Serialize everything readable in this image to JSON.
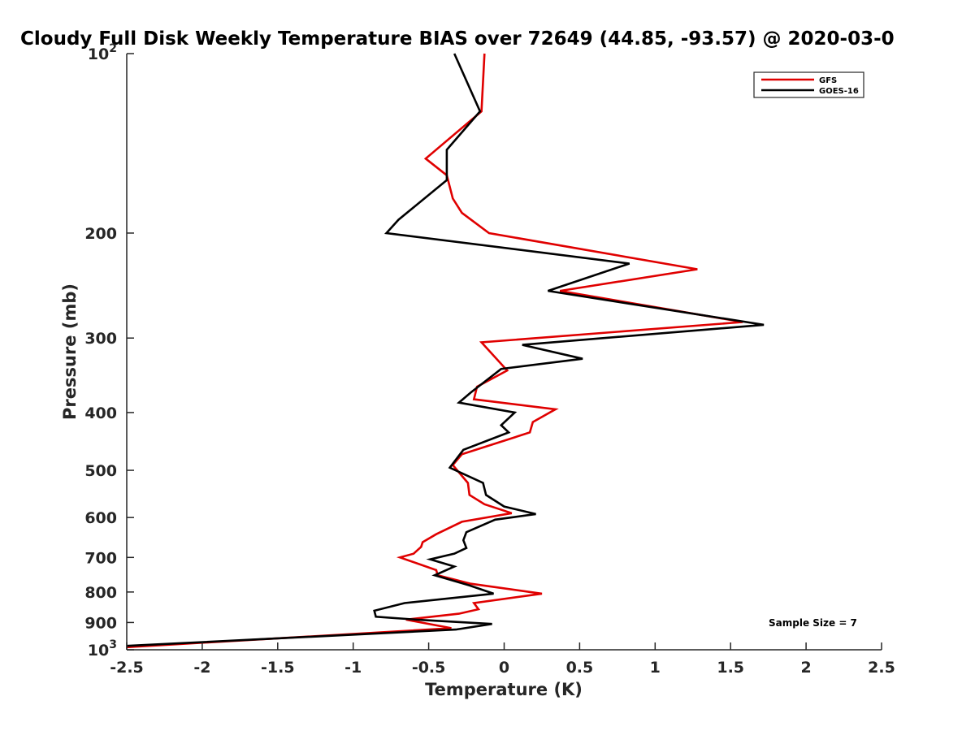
{
  "chart_data": {
    "type": "line",
    "title": "Cloudy Full Disk Weekly Temperature BIAS over 72649 (44.85, -93.57) @ 2020-03-0",
    "xlabel": "Temperature (K)",
    "ylabel": "Pressure (mb)",
    "xlim": [
      -2.5,
      2.5
    ],
    "ylim": [
      1000,
      100
    ],
    "y_scale": "log",
    "y_reversed": true,
    "x_ticks": [
      "-2.5",
      "-2",
      "-1.5",
      "-1",
      "-0.5",
      "0",
      "0.5",
      "1",
      "1.5",
      "2",
      "2.5"
    ],
    "x_tick_values": [
      -2.5,
      -2,
      -1.5,
      -1,
      -0.5,
      0,
      0.5,
      1,
      1.5,
      2,
      2.5
    ],
    "y_ticks": [
      {
        "value": 100,
        "label": "10",
        "sup": "2"
      },
      {
        "value": 200,
        "label": "200",
        "sup": ""
      },
      {
        "value": 300,
        "label": "300",
        "sup": ""
      },
      {
        "value": 400,
        "label": "400",
        "sup": ""
      },
      {
        "value": 500,
        "label": "500",
        "sup": ""
      },
      {
        "value": 600,
        "label": "600",
        "sup": ""
      },
      {
        "value": 700,
        "label": "700",
        "sup": ""
      },
      {
        "value": 800,
        "label": "800",
        "sup": ""
      },
      {
        "value": 900,
        "label": "900",
        "sup": ""
      },
      {
        "value": 1000,
        "label": "10",
        "sup": "3"
      }
    ],
    "grid": false,
    "legend_position": "top-right",
    "annotation": "Sample Size = 7",
    "series": [
      {
        "name": "GFS",
        "color": "#e00000",
        "points": [
          [
            -0.13,
            100
          ],
          [
            -0.15,
            125
          ],
          [
            -0.52,
            150
          ],
          [
            -0.38,
            160
          ],
          [
            -0.34,
            175
          ],
          [
            -0.28,
            185
          ],
          [
            -0.1,
            200
          ],
          [
            1.28,
            230
          ],
          [
            0.37,
            250
          ],
          [
            1.58,
            282
          ],
          [
            -0.15,
            305
          ],
          [
            0.02,
            340
          ],
          [
            -0.18,
            362
          ],
          [
            -0.2,
            380
          ],
          [
            0.34,
            395
          ],
          [
            0.19,
            415
          ],
          [
            0.17,
            432
          ],
          [
            -0.28,
            470
          ],
          [
            -0.34,
            490
          ],
          [
            -0.24,
            525
          ],
          [
            -0.23,
            550
          ],
          [
            -0.13,
            570
          ],
          [
            0.05,
            590
          ],
          [
            -0.28,
            610
          ],
          [
            -0.45,
            640
          ],
          [
            -0.54,
            660
          ],
          [
            -0.55,
            672
          ],
          [
            -0.6,
            690
          ],
          [
            -0.69,
            700
          ],
          [
            -0.45,
            735
          ],
          [
            -0.44,
            750
          ],
          [
            -0.22,
            775
          ],
          [
            0.25,
            805
          ],
          [
            -0.2,
            835
          ],
          [
            -0.17,
            855
          ],
          [
            -0.3,
            870
          ],
          [
            -0.65,
            890
          ],
          [
            -0.35,
            920
          ],
          [
            -2.5,
            990
          ]
        ]
      },
      {
        "name": "GOES-16",
        "color": "#000000",
        "points": [
          [
            -0.33,
            100
          ],
          [
            -0.16,
            125
          ],
          [
            -0.38,
            145
          ],
          [
            -0.38,
            163
          ],
          [
            -0.7,
            190
          ],
          [
            -0.78,
            200
          ],
          [
            0.83,
            225
          ],
          [
            0.29,
            250
          ],
          [
            1.72,
            285
          ],
          [
            0.12,
            308
          ],
          [
            0.52,
            325
          ],
          [
            -0.02,
            338
          ],
          [
            -0.22,
            370
          ],
          [
            -0.3,
            385
          ],
          [
            0.07,
            400
          ],
          [
            -0.02,
            420
          ],
          [
            0.03,
            432
          ],
          [
            -0.27,
            462
          ],
          [
            -0.36,
            495
          ],
          [
            -0.14,
            525
          ],
          [
            -0.12,
            550
          ],
          [
            0.0,
            575
          ],
          [
            0.21,
            592
          ],
          [
            -0.06,
            605
          ],
          [
            -0.25,
            635
          ],
          [
            -0.27,
            655
          ],
          [
            -0.25,
            675
          ],
          [
            -0.33,
            690
          ],
          [
            -0.49,
            705
          ],
          [
            -0.33,
            725
          ],
          [
            -0.46,
            750
          ],
          [
            -0.23,
            780
          ],
          [
            -0.07,
            805
          ],
          [
            -0.66,
            835
          ],
          [
            -0.86,
            860
          ],
          [
            -0.85,
            880
          ],
          [
            -0.58,
            890
          ],
          [
            -0.08,
            905
          ],
          [
            -0.32,
            925
          ],
          [
            -2.5,
            985
          ]
        ]
      }
    ]
  }
}
